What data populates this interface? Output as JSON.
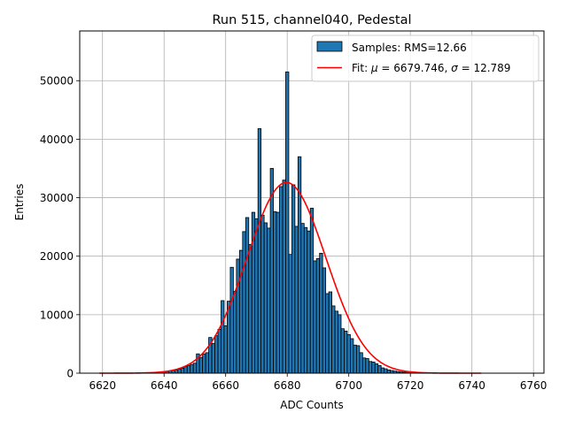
{
  "chart_data": {
    "type": "bar",
    "title": "Run 515, channel040, Pedestal",
    "xlabel": "ADC Counts",
    "ylabel": "Entries",
    "xlim": [
      6612.6,
      6763.4
    ],
    "ylim": [
      0,
      58500
    ],
    "xticks": [
      6620,
      6640,
      6660,
      6680,
      6700,
      6720,
      6740,
      6760
    ],
    "yticks": [
      0,
      10000,
      20000,
      30000,
      40000,
      50000
    ],
    "grid": true,
    "legend_position": "top-right",
    "bar_color": "#1f77b4",
    "fit_color": "#ff0000",
    "series": [
      {
        "name": "Samples: RMS=12.66",
        "type": "histogram",
        "bins": [
          [
            6619,
            0
          ],
          [
            6620,
            0
          ],
          [
            6621,
            0
          ],
          [
            6622,
            0
          ],
          [
            6623,
            0
          ],
          [
            6624,
            0
          ],
          [
            6625,
            0
          ],
          [
            6626,
            0
          ],
          [
            6627,
            0
          ],
          [
            6628,
            0
          ],
          [
            6629,
            0
          ],
          [
            6630,
            0
          ],
          [
            6631,
            0
          ],
          [
            6632,
            0
          ],
          [
            6633,
            0
          ],
          [
            6634,
            50
          ],
          [
            6635,
            70
          ],
          [
            6636,
            90
          ],
          [
            6637,
            120
          ],
          [
            6638,
            150
          ],
          [
            6639,
            170
          ],
          [
            6640,
            220
          ],
          [
            6641,
            290
          ],
          [
            6642,
            380
          ],
          [
            6643,
            450
          ],
          [
            6644,
            550
          ],
          [
            6645,
            700
          ],
          [
            6646,
            850
          ],
          [
            6647,
            1100
          ],
          [
            6648,
            1300
          ],
          [
            6649,
            1500
          ],
          [
            6650,
            1700
          ],
          [
            6651,
            3300
          ],
          [
            6652,
            2700
          ],
          [
            6653,
            3300
          ],
          [
            6654,
            3500
          ],
          [
            6655,
            6100
          ],
          [
            6656,
            5100
          ],
          [
            6657,
            6400
          ],
          [
            6658,
            7500
          ],
          [
            6659,
            12400
          ],
          [
            6660,
            8100
          ],
          [
            6661,
            12300
          ],
          [
            6662,
            18100
          ],
          [
            6663,
            14000
          ],
          [
            6664,
            19500
          ],
          [
            6665,
            21000
          ],
          [
            6666,
            24200
          ],
          [
            6667,
            26600
          ],
          [
            6668,
            22000
          ],
          [
            6669,
            27500
          ],
          [
            6670,
            26400
          ],
          [
            6671,
            41800
          ],
          [
            6672,
            27000
          ],
          [
            6673,
            25700
          ],
          [
            6674,
            24800
          ],
          [
            6675,
            35000
          ],
          [
            6676,
            27600
          ],
          [
            6677,
            27500
          ],
          [
            6678,
            31900
          ],
          [
            6679,
            33000
          ],
          [
            6680,
            51500
          ],
          [
            6681,
            20300
          ],
          [
            6682,
            32200
          ],
          [
            6683,
            25100
          ],
          [
            6684,
            37000
          ],
          [
            6685,
            25600
          ],
          [
            6686,
            24900
          ],
          [
            6687,
            24300
          ],
          [
            6688,
            28200
          ],
          [
            6689,
            19200
          ],
          [
            6690,
            19600
          ],
          [
            6691,
            20500
          ],
          [
            6692,
            18000
          ],
          [
            6693,
            13600
          ],
          [
            6694,
            13900
          ],
          [
            6695,
            11500
          ],
          [
            6696,
            10600
          ],
          [
            6697,
            10000
          ],
          [
            6698,
            7600
          ],
          [
            6699,
            7200
          ],
          [
            6700,
            6600
          ],
          [
            6701,
            5900
          ],
          [
            6702,
            4800
          ],
          [
            6703,
            4700
          ],
          [
            6704,
            3500
          ],
          [
            6705,
            2600
          ],
          [
            6706,
            2500
          ],
          [
            6707,
            2000
          ],
          [
            6708,
            1900
          ],
          [
            6709,
            1600
          ],
          [
            6710,
            1300
          ],
          [
            6711,
            900
          ],
          [
            6712,
            750
          ],
          [
            6713,
            550
          ],
          [
            6714,
            450
          ],
          [
            6715,
            350
          ],
          [
            6716,
            280
          ],
          [
            6717,
            210
          ],
          [
            6718,
            160
          ],
          [
            6719,
            120
          ],
          [
            6720,
            90
          ],
          [
            6721,
            60
          ],
          [
            6722,
            45
          ],
          [
            6723,
            30
          ],
          [
            6724,
            20
          ],
          [
            6725,
            15
          ],
          [
            6726,
            10
          ],
          [
            6727,
            5
          ],
          [
            6728,
            0
          ],
          [
            6729,
            0
          ],
          [
            6730,
            0
          ],
          [
            6731,
            0
          ],
          [
            6732,
            0
          ],
          [
            6733,
            0
          ],
          [
            6734,
            0
          ],
          [
            6735,
            0
          ],
          [
            6736,
            0
          ],
          [
            6737,
            0
          ],
          [
            6738,
            0
          ],
          [
            6739,
            0
          ],
          [
            6740,
            0
          ],
          [
            6741,
            0
          ],
          [
            6742,
            0
          ],
          [
            6743,
            0
          ]
        ]
      },
      {
        "name": "Fit: μ = 6679.746, σ = 12.789",
        "name_prefix": "Fit: ",
        "name_mu_value": " = 6679.746, ",
        "name_sigma_value": " = 12.789",
        "type": "gaussian",
        "mu": 6679.746,
        "sigma": 12.789,
        "amplitude": 32600,
        "x_range": [
          6619,
          6743
        ]
      }
    ]
  }
}
